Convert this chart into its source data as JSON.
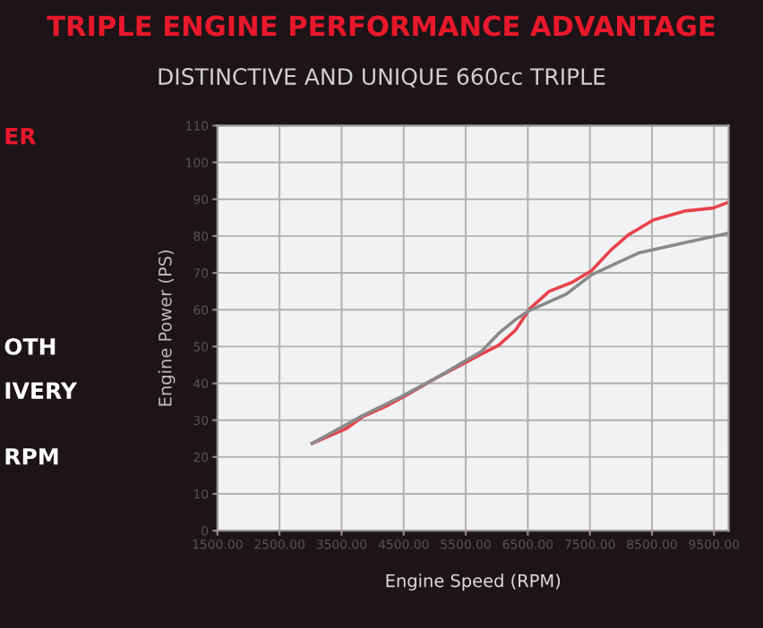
{
  "chart_data": {
    "type": "line",
    "title": "TRIPLE ENGINE PERFORMANCE ADVANTAGE",
    "subtitle": "DISTINCTIVE AND UNIQUE 660cc TRIPLE",
    "xlabel": "Engine Speed (RPM)",
    "ylabel": "Engine Power (PS)",
    "annotations": [
      "ER",
      "OTH",
      "IVERY",
      "RPM"
    ],
    "series": [
      {
        "color": "#e8424a",
        "x": [
          3027,
          3573,
          3845,
          4209,
          4527,
          5027,
          5390,
          5755,
          6027,
          6300,
          6527,
          6845,
          7209,
          7527,
          7845,
          8118,
          8527,
          9027,
          9482,
          9736
        ],
        "values": [
          23.7,
          27.7,
          31,
          33.7,
          36.6,
          41.5,
          44.7,
          48,
          50.3,
          54.4,
          60.2,
          65,
          67.4,
          70.6,
          76.3,
          80.3,
          84.4,
          86.8,
          87.6,
          89.2
        ]
      },
      {
        "color": "#8a8a8a",
        "x": [
          3027,
          3845,
          4482,
          5027,
          5755,
          6027,
          6300,
          6527,
          7118,
          7527,
          8300,
          9027,
          9736
        ],
        "values": [
          23.7,
          31.3,
          36.6,
          41.5,
          48.7,
          53.5,
          57.3,
          59.8,
          64.2,
          69.5,
          75.5,
          78.2,
          80.8
        ]
      }
    ],
    "xlim": [
      1500,
      9736
    ],
    "ylim": [
      0,
      110
    ],
    "xticks": [
      {
        "value": 1500,
        "label": "1500.00"
      },
      {
        "value": 2500,
        "label": "2500.00"
      },
      {
        "value": 3500,
        "label": "3500.00"
      },
      {
        "value": 4500,
        "label": "4500.00"
      },
      {
        "value": 5500,
        "label": "5500.00"
      },
      {
        "value": 6500,
        "label": "6500.00"
      },
      {
        "value": 7500,
        "label": "7500.00"
      },
      {
        "value": 8500,
        "label": "8500.00"
      },
      {
        "value": 9500,
        "label": "9500.00"
      }
    ],
    "yticks": [
      0,
      10,
      20,
      30,
      40,
      50,
      60,
      70,
      80,
      90,
      100,
      110
    ],
    "grid": true,
    "marker": "none",
    "line_style": "solid"
  }
}
